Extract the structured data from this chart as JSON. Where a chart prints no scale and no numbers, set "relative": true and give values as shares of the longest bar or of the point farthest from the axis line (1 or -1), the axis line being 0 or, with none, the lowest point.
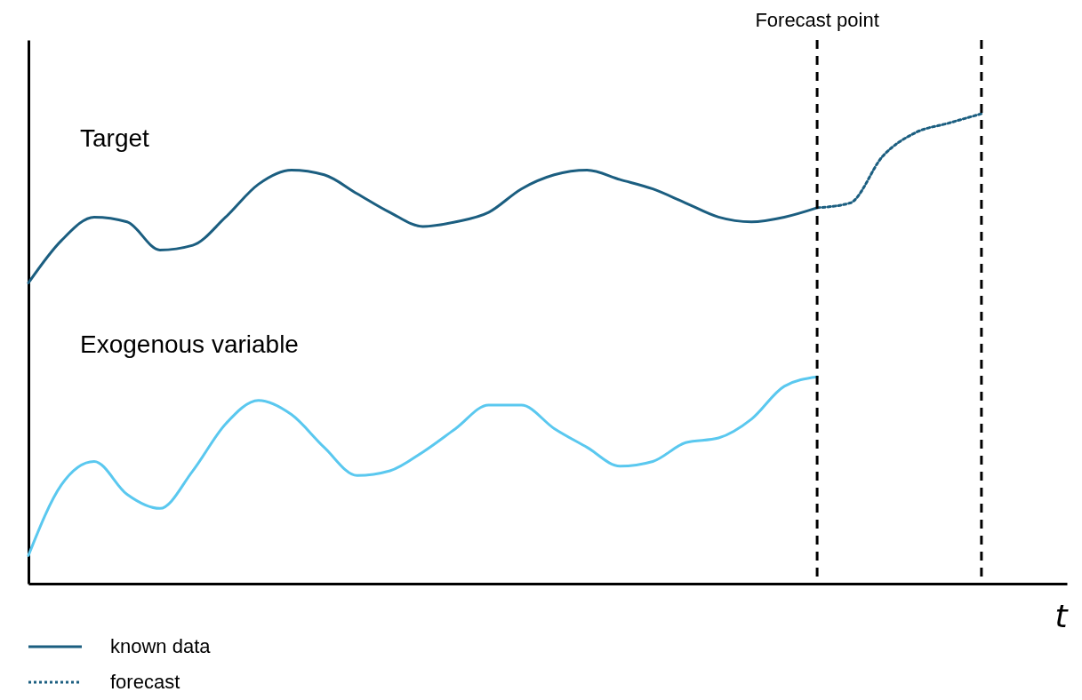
{
  "chart_data": {
    "type": "line",
    "relative": true,
    "xlabel": "t",
    "legend": false,
    "categories": [
      null,
      null,
      null,
      null,
      null,
      null,
      null,
      null,
      null,
      null,
      null,
      null,
      null,
      null,
      null,
      null,
      null,
      null,
      null,
      null,
      null,
      null,
      null,
      null,
      null,
      null,
      null,
      null,
      null,
      null
    ],
    "series": [
      {
        "name": "Target",
        "color": "#1b5e80",
        "line_style": "solid",
        "values": [
          0.64,
          0.73,
          0.78,
          0.77,
          0.71,
          0.72,
          0.78,
          0.85,
          0.88,
          0.87,
          0.83,
          0.79,
          0.76,
          0.77,
          0.79,
          0.84,
          0.87,
          0.88,
          0.86,
          0.84,
          0.81,
          0.78,
          0.77,
          0.78,
          0.8,
          null,
          null,
          null,
          null,
          null
        ]
      },
      {
        "color": "#1b5e80",
        "line_style": "dotted",
        "values": [
          null,
          null,
          null,
          null,
          null,
          null,
          null,
          null,
          null,
          null,
          null,
          null,
          null,
          null,
          null,
          null,
          null,
          null,
          null,
          null,
          null,
          null,
          null,
          null,
          0.8,
          0.81,
          0.91,
          0.96,
          0.98,
          1
        ]
      },
      {
        "name": "Exogenous variable",
        "color": "#5ac8ef",
        "line_style": "solid",
        "values": [
          0.06,
          0.21,
          0.26,
          0.19,
          0.16,
          0.24,
          0.34,
          0.39,
          0.36,
          0.29,
          0.23,
          0.24,
          0.28,
          0.33,
          0.38,
          0.38,
          0.33,
          0.29,
          0.25,
          0.26,
          0.3,
          0.31,
          0.35,
          0.42,
          0.44,
          null,
          null,
          null,
          null,
          null
        ]
      }
    ],
    "annotations": [
      "Forecast point",
      "known data",
      "forecast"
    ]
  }
}
